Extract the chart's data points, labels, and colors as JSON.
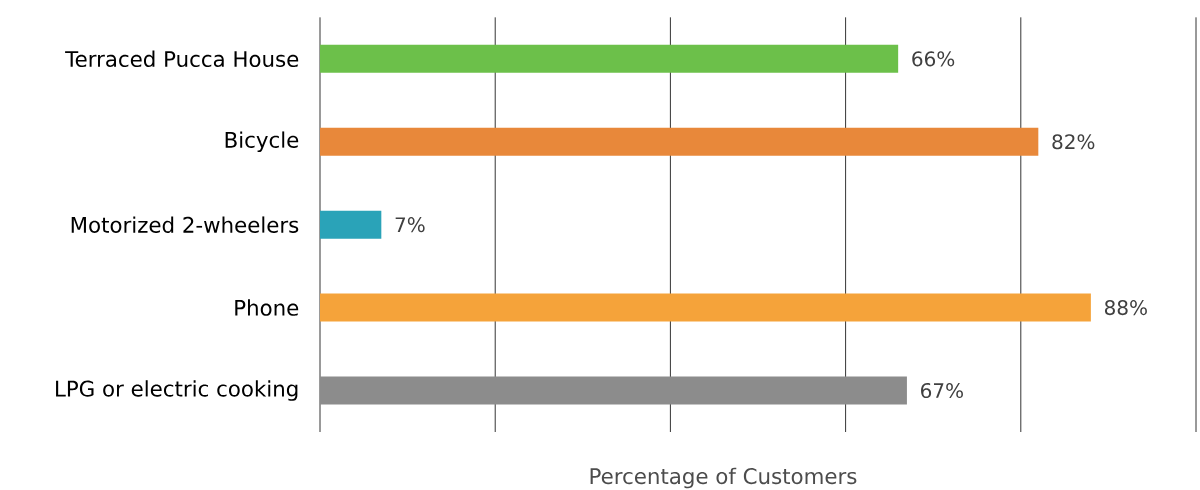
{
  "chart_data": {
    "type": "bar",
    "orientation": "horizontal",
    "xlabel": "Percentage of Customers",
    "categories": [
      "Terraced Pucca House",
      "Bicycle",
      "Motorized 2-wheelers",
      "Phone",
      "LPG or electric cooking"
    ],
    "values": [
      66,
      82,
      7,
      88,
      67
    ],
    "value_labels": [
      "66%",
      "82%",
      "7%",
      "88%",
      "67%"
    ],
    "colors": [
      "#6cc04a",
      "#e8883a",
      "#2aa3b8",
      "#f5a33a",
      "#8c8c8c"
    ],
    "xlim": [
      0,
      100
    ],
    "xticks": [
      {
        "value": 0,
        "label": null
      },
      {
        "value": 20,
        "label": null
      },
      {
        "value": 40,
        "label": null
      },
      {
        "value": 60,
        "label": null
      },
      {
        "value": 80,
        "label": null
      },
      {
        "value": 100,
        "label": null
      }
    ],
    "grid": "x",
    "tick_labels": "y"
  }
}
